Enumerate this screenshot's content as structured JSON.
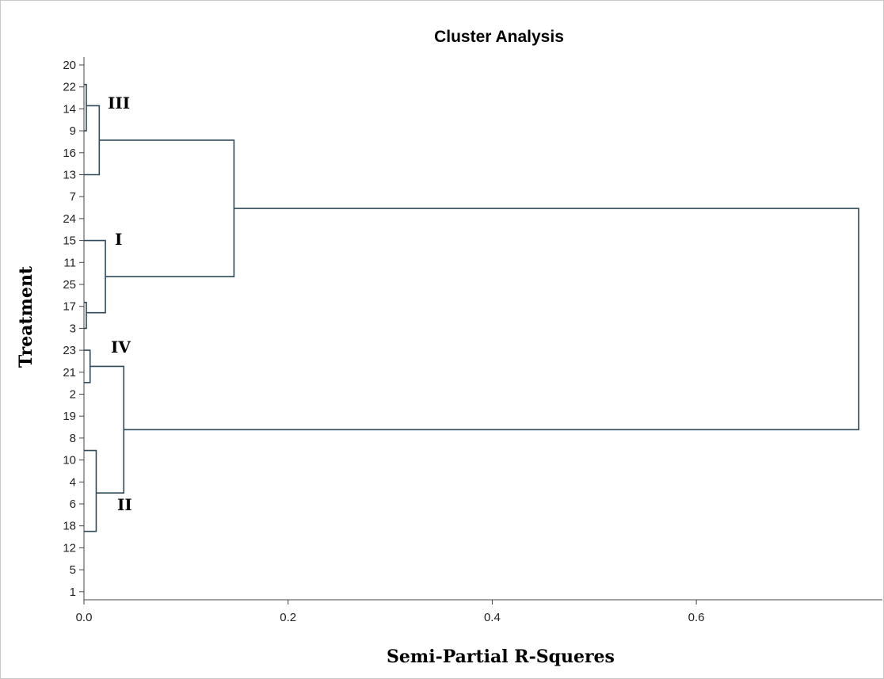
{
  "chart_data": {
    "type": "dendrogram",
    "title": "Cluster Analysis",
    "xlabel": "Semi-Partial R-Squeres",
    "ylabel": "Treatment",
    "xlim": [
      0,
      0.78
    ],
    "xticks": [
      "0.0",
      "0.2",
      "0.4",
      "0.6"
    ],
    "xtick_values": [
      0,
      0.2,
      0.4,
      0.6
    ],
    "leaves": [
      "20",
      "22",
      "14",
      "9",
      "16",
      "13",
      "7",
      "24",
      "15",
      "11",
      "25",
      "17",
      "3",
      "23",
      "21",
      "2",
      "19",
      "8",
      "10",
      "4",
      "6",
      "18",
      "12",
      "5",
      "1"
    ],
    "merges": [
      {
        "left": [
          "20",
          "22",
          "14",
          "9"
        ],
        "right": [
          "16",
          "13"
        ],
        "height": 0.015
      },
      {
        "left": [
          "15",
          "11",
          "25"
        ],
        "right": [
          "17",
          "3"
        ],
        "height": 0.021
      },
      {
        "left": [
          "III"
        ],
        "right": [
          "I"
        ],
        "height": 0.147
      },
      {
        "left": [
          "23",
          "21"
        ],
        "right": [
          "2",
          "19",
          "8"
        ],
        "height": 0.006
      },
      {
        "left": [
          "10",
          "4"
        ],
        "right": [
          "6",
          "18"
        ],
        "height": 0.012
      },
      {
        "left": [
          "IV"
        ],
        "right": [
          "II"
        ],
        "height": 0.039
      },
      {
        "left": [
          "III + I"
        ],
        "right": [
          "IV + II"
        ],
        "height": 0.759
      }
    ],
    "cluster_labels": [
      {
        "label": "III"
      },
      {
        "label": "I"
      },
      {
        "label": "IV"
      },
      {
        "label": "II"
      }
    ],
    "line_color": "#2f4a5a"
  }
}
